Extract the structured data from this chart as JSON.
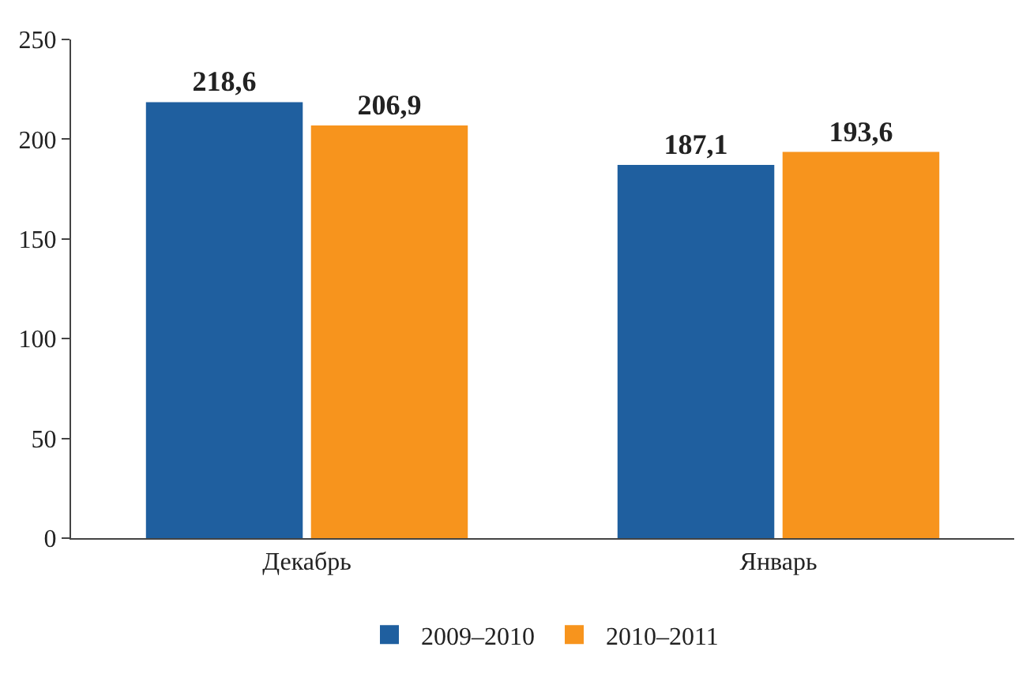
{
  "chart_data": {
    "type": "bar",
    "categories": [
      "Декабрь",
      "Январь"
    ],
    "series": [
      {
        "name": "2009–2010",
        "color": "#1f5f9f",
        "values": [
          218.6,
          187.1
        ],
        "value_labels": [
          "218,6",
          "187,1"
        ]
      },
      {
        "name": "2010–2011",
        "color": "#f7941d",
        "values": [
          206.9,
          193.6
        ],
        "value_labels": [
          "206,9",
          "193,6"
        ]
      }
    ],
    "ylim": [
      0,
      250
    ],
    "yticks": [
      0,
      50,
      100,
      150,
      200,
      250
    ],
    "legend": "bottom"
  }
}
